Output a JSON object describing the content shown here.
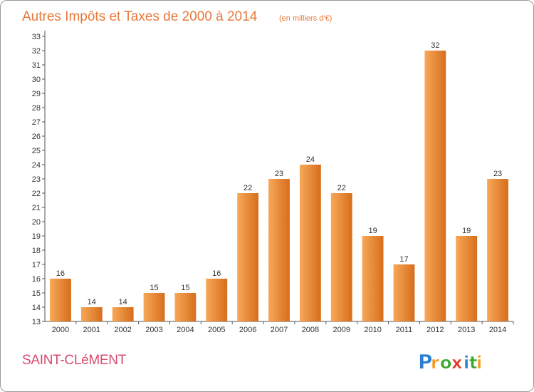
{
  "chart_data": {
    "type": "bar",
    "title": "Autres Impôts et Taxes de 2000 à 2014",
    "subtitle": "(en milliers d'€)",
    "categories": [
      "2000",
      "2001",
      "2002",
      "2003",
      "2004",
      "2005",
      "2006",
      "2007",
      "2008",
      "2009",
      "2010",
      "2011",
      "2012",
      "2013",
      "2014"
    ],
    "values": [
      16,
      14,
      14,
      15,
      15,
      16,
      22,
      23,
      24,
      22,
      19,
      17,
      32,
      19,
      23
    ],
    "ylim": [
      13,
      33
    ],
    "yticks": [
      13,
      14,
      15,
      16,
      17,
      18,
      19,
      20,
      21,
      22,
      23,
      24,
      25,
      26,
      27,
      28,
      29,
      30,
      31,
      32,
      33
    ],
    "grid": false,
    "legend": "none"
  },
  "commune": "SAINT-CLéMENT",
  "logo": {
    "letters": [
      "P",
      "r",
      "o",
      "x",
      "i",
      "t",
      "i"
    ],
    "colors": [
      "#2a7fd4",
      "#f29a1f",
      "#3aa62e",
      "#e23a2a",
      "#2a7fd4",
      "#3aa62e",
      "#f29a1f"
    ]
  },
  "colors": {
    "bar_light": "#f7a858",
    "bar_dark": "#d66e1c",
    "title": "#e8783a",
    "commune": "#d94a6e"
  }
}
